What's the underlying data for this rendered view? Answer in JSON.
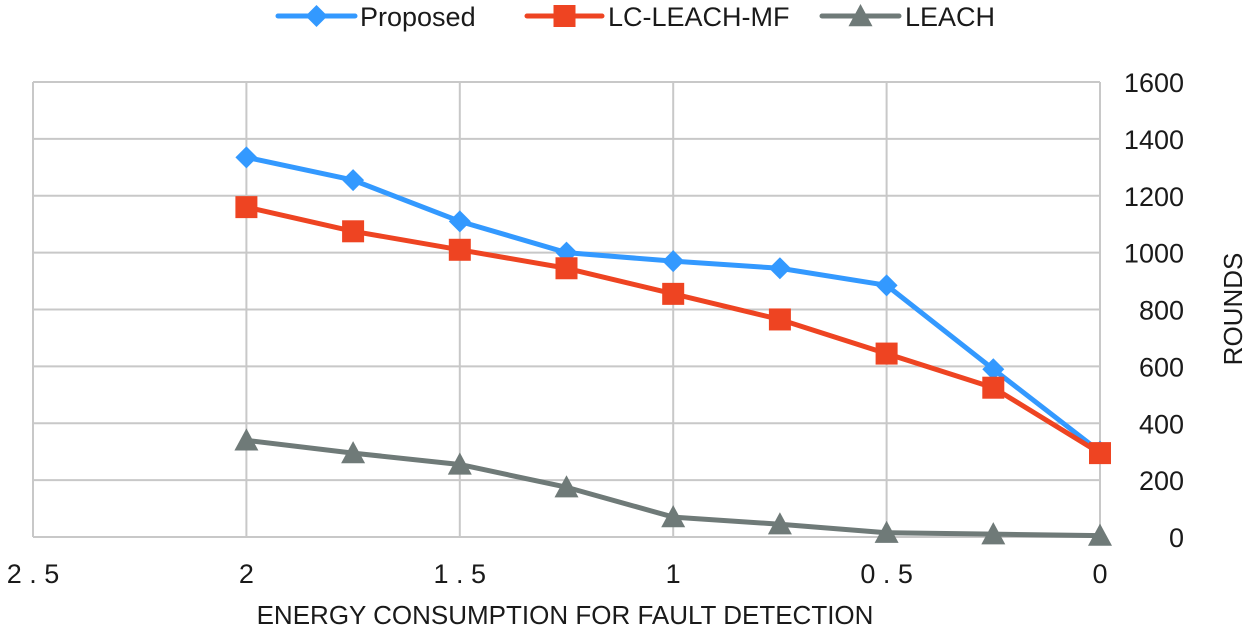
{
  "chart_data": {
    "type": "line",
    "title": "",
    "xlabel": "ENERGY CONSUMPTION FOR FAULT DETECTION",
    "ylabel": "ROUNDS",
    "xlim": [
      2.5,
      0
    ],
    "ylim": [
      0,
      1600
    ],
    "x_reversed": true,
    "y_axis_side": "right",
    "grid": true,
    "legend_position": "top-center",
    "x_ticks": [
      2.5,
      2,
      1.5,
      1,
      0.5,
      0
    ],
    "x_tick_labels": [
      "2.5",
      "2",
      "1.5",
      "1",
      "0.5",
      "0"
    ],
    "y_ticks": [
      0,
      200,
      400,
      600,
      800,
      1000,
      1200,
      1400,
      1600
    ],
    "y_tick_labels": [
      "0",
      "200",
      "400",
      "600",
      "800",
      "1000",
      "1200",
      "1400",
      "1600"
    ],
    "x": [
      2.0,
      1.75,
      1.5,
      1.25,
      1.0,
      0.75,
      0.5,
      0.25,
      0.0
    ],
    "series": [
      {
        "name": "Proposed",
        "color": "#3399ff",
        "marker": "diamond",
        "values": [
          1335,
          1255,
          1110,
          1000,
          970,
          945,
          885,
          590,
          300
        ]
      },
      {
        "name": "LC-LEACH-MF",
        "color": "#ee4422",
        "marker": "square",
        "values": [
          1160,
          1075,
          1010,
          945,
          855,
          765,
          645,
          525,
          295
        ]
      },
      {
        "name": "LEACH",
        "color": "#6f7a78",
        "marker": "triangle",
        "values": [
          340,
          295,
          255,
          175,
          70,
          45,
          15,
          10,
          5
        ]
      }
    ]
  }
}
